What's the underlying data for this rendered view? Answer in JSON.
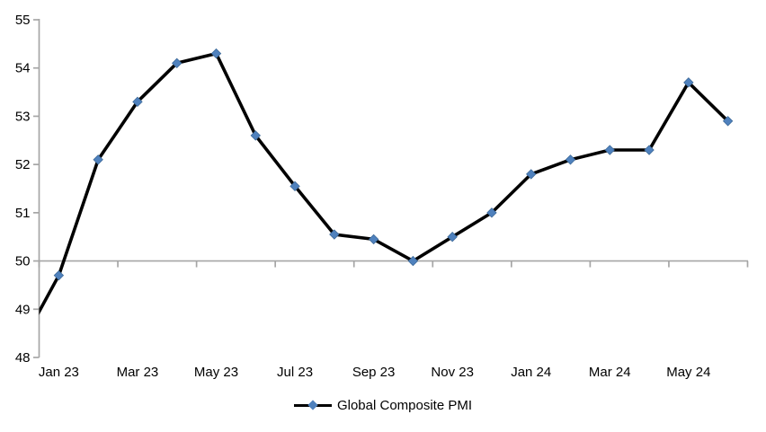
{
  "chart_data": {
    "type": "line",
    "title": "",
    "x_tick_labels": [
      "Jan 23",
      "Mar 23",
      "May 23",
      "Jul 23",
      "Sep 23",
      "Nov 23",
      "Jan 24",
      "Mar 24",
      "May 24"
    ],
    "y_ticks": [
      48,
      49,
      50,
      51,
      52,
      53,
      54,
      55
    ],
    "ylim": [
      48,
      55
    ],
    "x_axis_cross_value": 50,
    "grid": false,
    "legend_position": "bottom",
    "colors": {
      "line": "#000000",
      "marker": "#4F81BD",
      "marker_edge": "#3A6694",
      "axis": "#A6A6A6",
      "text": "#000000",
      "background": "#FFFFFF"
    },
    "series": [
      {
        "name": "Global Composite PMI",
        "marker": "diamond",
        "points": [
          {
            "label": "Dec 22",
            "value": 48.2,
            "clipped": true
          },
          {
            "label": "Jan 23",
            "value": 49.7
          },
          {
            "label": "Feb 23",
            "value": 52.1
          },
          {
            "label": "Mar 23",
            "value": 53.3
          },
          {
            "label": "Apr 23",
            "value": 54.1
          },
          {
            "label": "May 23",
            "value": 54.3
          },
          {
            "label": "Jun 23",
            "value": 52.6
          },
          {
            "label": "Jul 23",
            "value": 51.55
          },
          {
            "label": "Aug 23",
            "value": 50.55
          },
          {
            "label": "Sep 23",
            "value": 50.45
          },
          {
            "label": "Oct 23",
            "value": 50.0
          },
          {
            "label": "Nov 23",
            "value": 50.5
          },
          {
            "label": "Dec 23",
            "value": 51.0
          },
          {
            "label": "Jan 24",
            "value": 51.8
          },
          {
            "label": "Feb 24",
            "value": 52.1
          },
          {
            "label": "Mar 24",
            "value": 52.3
          },
          {
            "label": "Apr 24",
            "value": 52.3
          },
          {
            "label": "May 24",
            "value": 53.7
          },
          {
            "label": "Jun 24",
            "value": 52.9
          }
        ]
      }
    ]
  }
}
